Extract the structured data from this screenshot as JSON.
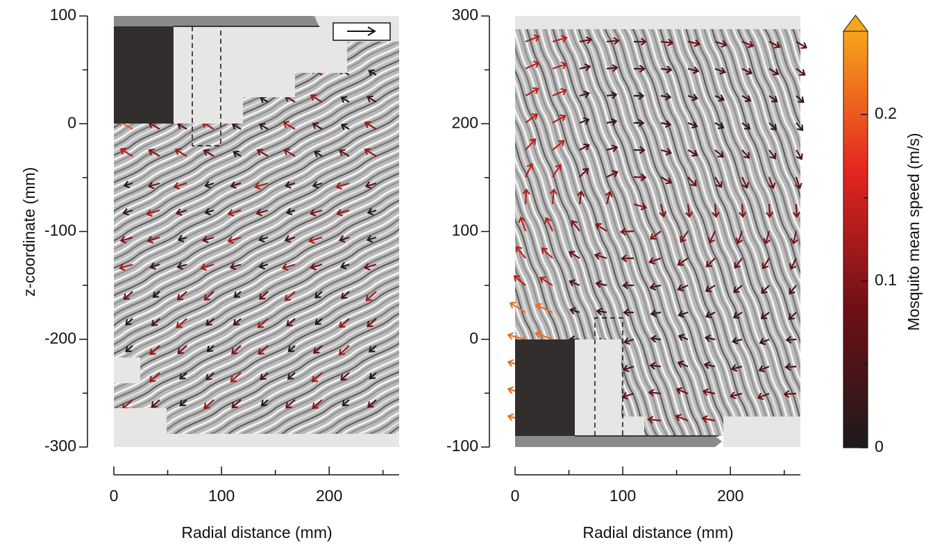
{
  "chart_data": [
    {
      "type": "vector-field",
      "x_label": "Radial distance (mm)",
      "y_label": "z-coordinate (mm)",
      "xlim": [
        0,
        265
      ],
      "xticks": [
        0,
        100,
        200
      ],
      "xminor": [
        50,
        150,
        250
      ],
      "ylim": [
        -300,
        100
      ],
      "yticks": [
        -300,
        -200,
        -100,
        0,
        100
      ],
      "yminor": [
        -250,
        -150,
        -50,
        50
      ]
    },
    {
      "type": "vector-field",
      "x_label": "Radial distance (mm)",
      "xlim": [
        0,
        265
      ],
      "xticks": [
        0,
        100,
        200
      ],
      "xminor": [
        50,
        150,
        250
      ],
      "ylim": [
        -100,
        300
      ],
      "yticks": [
        -100,
        0,
        100,
        200,
        300
      ],
      "yminor": [
        -50,
        50,
        150,
        250
      ]
    }
  ],
  "colorbar": {
    "label": "Mosquito mean speed (m/s)",
    "lim": [
      0,
      0.25
    ],
    "ticks": [
      0,
      0.1,
      0.2
    ],
    "minor": [
      0.05,
      0.15
    ],
    "colors": [
      "#1c1a1a",
      "#6e1016",
      "#e3261f",
      "#f7a51c"
    ]
  }
}
